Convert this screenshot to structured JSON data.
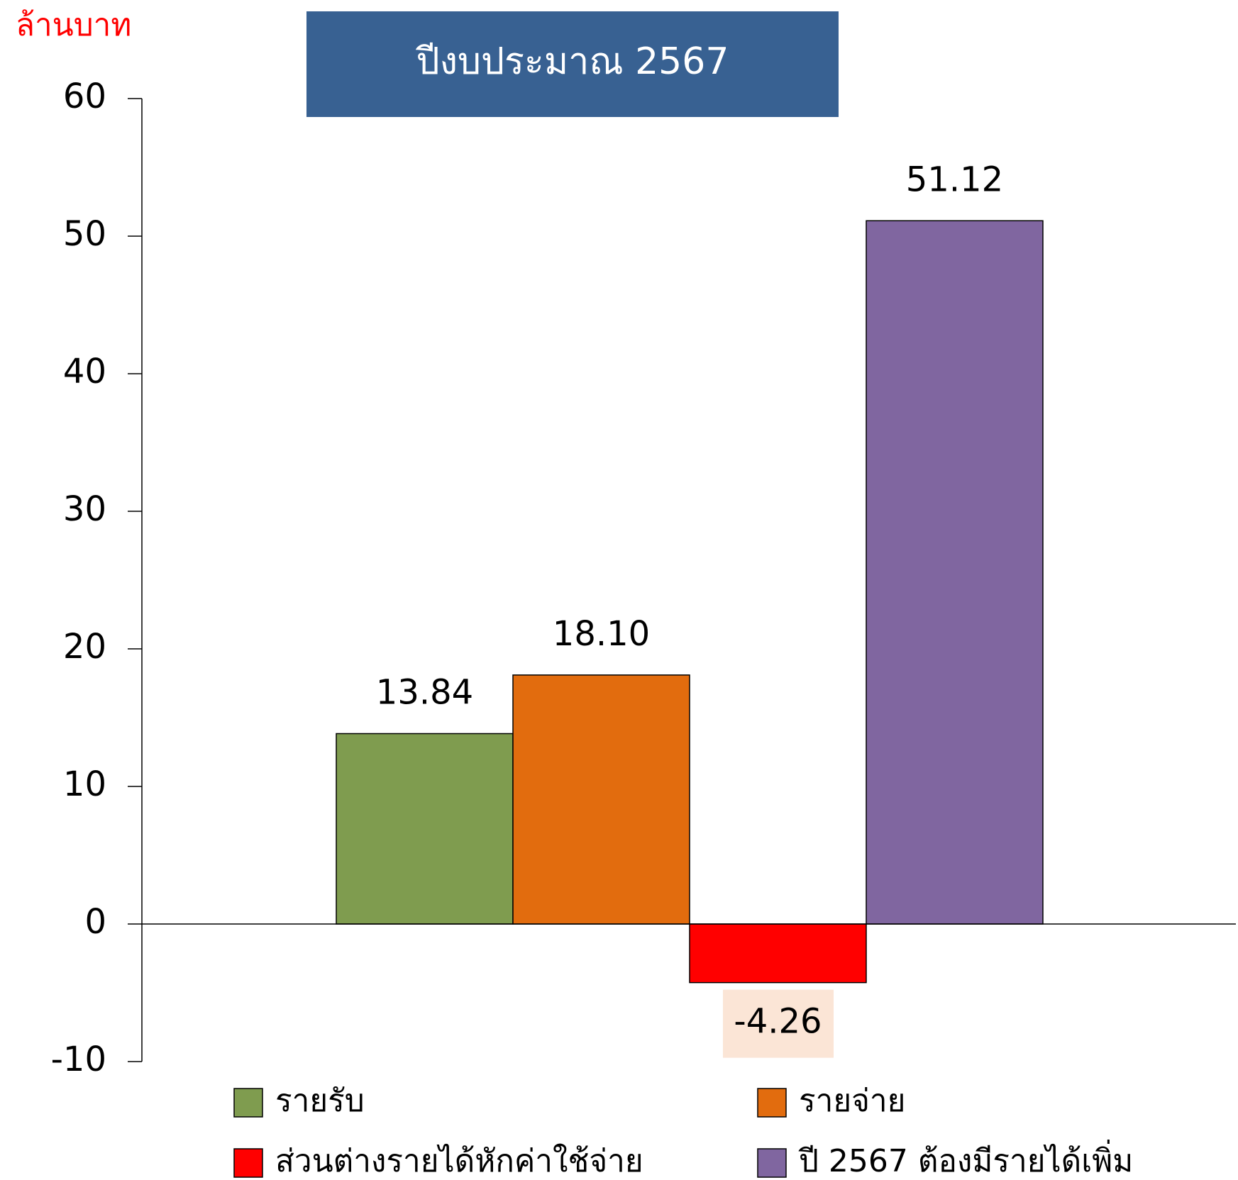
{
  "chart_data": {
    "type": "bar",
    "title": "ปีงบประมาณ 2567",
    "y_label": "ล้านบาท",
    "series": [
      {
        "name": "รายรับ",
        "color": "#7f9c4f",
        "values": [
          13.84
        ],
        "value_labels": [
          "13.84"
        ]
      },
      {
        "name": "รายจ่าย",
        "color": "#e26c0e",
        "values": [
          18.1
        ],
        "value_labels": [
          "18.10"
        ]
      },
      {
        "name": "ส่วนต่างรายได้หักค่าใช้จ่าย",
        "color": "#ff0000",
        "values": [
          -4.26
        ],
        "value_labels": [
          "-4.26"
        ]
      },
      {
        "name": "ปี 2567 ต้องมีรายได้เพิ่ม",
        "color": "#8066a0",
        "values": [
          51.12
        ],
        "value_labels": [
          "51.12"
        ]
      }
    ],
    "ylim": [
      -10,
      60
    ],
    "yticks": [
      -10,
      0,
      10,
      20,
      30,
      40,
      50,
      60
    ],
    "legend": "bottom"
  }
}
